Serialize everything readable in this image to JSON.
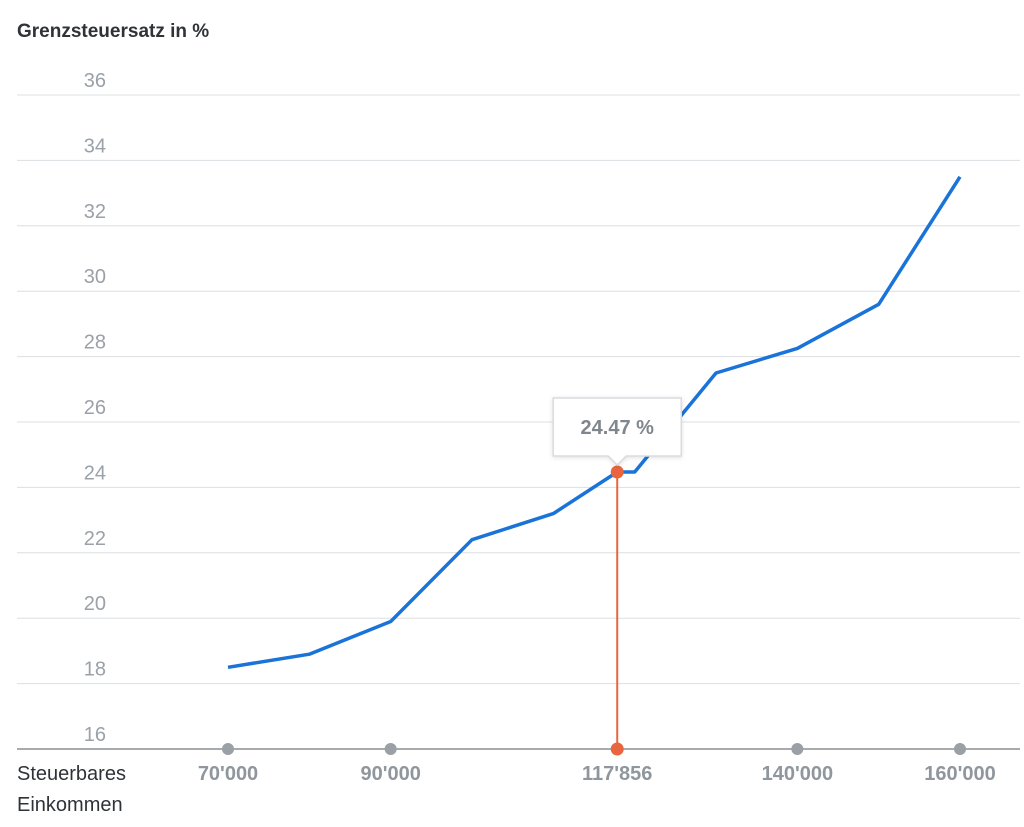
{
  "chart_data": {
    "type": "line",
    "ylabel": "Grenzsteuersatz in %",
    "xlabel_lines": [
      "Steuerbares",
      "Einkommen"
    ],
    "ylim": [
      16,
      36
    ],
    "yticks": [
      16,
      18,
      20,
      22,
      24,
      26,
      28,
      30,
      32,
      34,
      36
    ],
    "xlim": [
      70000,
      160000
    ],
    "xticks": [
      {
        "value": 70000,
        "label": "70'000"
      },
      {
        "value": 90000,
        "label": "90'000"
      },
      {
        "value": 117856,
        "label": "117'856",
        "active": true
      },
      {
        "value": 140000,
        "label": "140'000"
      },
      {
        "value": 160000,
        "label": "160'000"
      }
    ],
    "grid": true,
    "series": [
      {
        "color": "#1a73d8",
        "x": [
          70000,
          80000,
          90000,
          100000,
          110000,
          117856,
          120000,
          130000,
          140000,
          150000,
          160000
        ],
        "y": [
          18.5,
          18.9,
          19.9,
          22.4,
          23.2,
          24.47,
          24.47,
          27.5,
          28.25,
          29.6,
          33.5
        ]
      }
    ],
    "marker": {
      "x": 117856,
      "y": 24.47,
      "label": "24.47 %",
      "color": "#e8653f"
    }
  }
}
